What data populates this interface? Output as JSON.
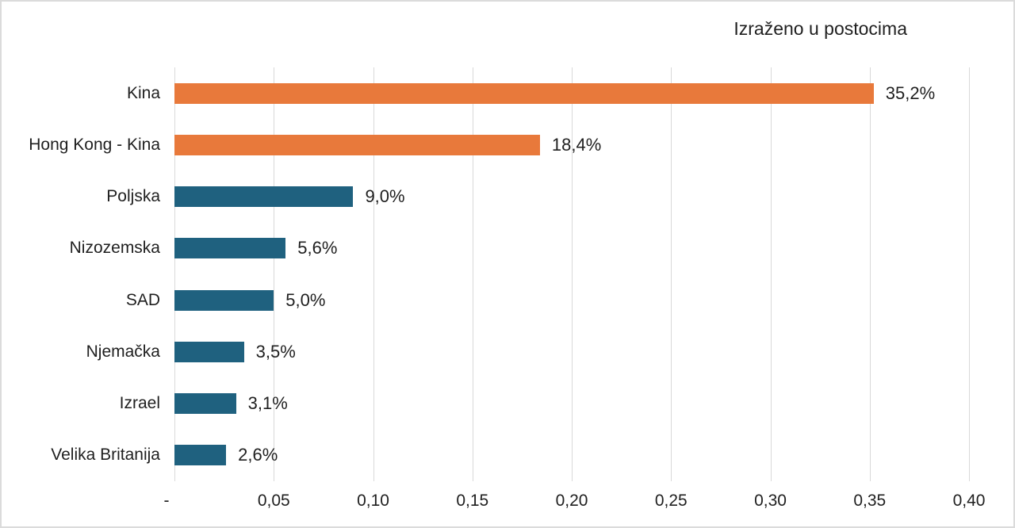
{
  "frame": {
    "background": "#FFFFFF",
    "border_color": "#DBDBDB"
  },
  "chart_data": {
    "type": "bar",
    "orientation": "horizontal",
    "title": "Izraženo u postocima",
    "categories": [
      "Kina",
      "Hong Kong - Kina",
      "Poljska",
      "Nizozemska",
      "SAD",
      "Njemačka",
      "Izrael",
      "Velika Britanija"
    ],
    "values": [
      0.352,
      0.184,
      0.09,
      0.056,
      0.05,
      0.035,
      0.031,
      0.026
    ],
    "value_labels": [
      "35,2%",
      "18,4%",
      "9,0%",
      "5,6%",
      "5,0%",
      "3,5%",
      "3,1%",
      "2,6%"
    ],
    "bar_colors": [
      "#E8793B",
      "#E8793B",
      "#1F617F",
      "#1F617F",
      "#1F617F",
      "#1F617F",
      "#1F617F",
      "#1F617F"
    ],
    "xlim": [
      0,
      0.4
    ],
    "x_tick_values": [
      0,
      0.05,
      0.1,
      0.15,
      0.2,
      0.25,
      0.3,
      0.35,
      0.4
    ],
    "x_tick_labels": [
      "-",
      "0,05",
      "0,10",
      "0,15",
      "0,20",
      "0,25",
      "0,30",
      "0,35",
      "0,40"
    ],
    "grid": "vertical",
    "gridline_color": "#D9D9D9",
    "legend": "none",
    "xlabel": "",
    "ylabel": ""
  }
}
